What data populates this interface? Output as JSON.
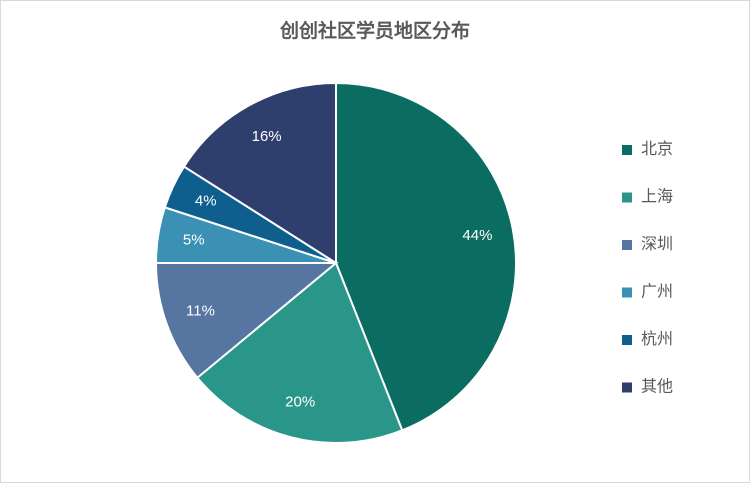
{
  "chart_data": {
    "type": "pie",
    "title": "创创社区学员地区分布",
    "categories": [
      "北京",
      "上海",
      "深圳",
      "广州",
      "杭州",
      "其他"
    ],
    "values": [
      44,
      20,
      11,
      5,
      4,
      16
    ],
    "value_labels": [
      "44%",
      "20%",
      "11%",
      "5%",
      "4%",
      "16%"
    ],
    "colors": [
      "#0b6d62",
      "#2a968a",
      "#5675a0",
      "#3a91b4",
      "#0e5f8e",
      "#2f3f6d"
    ],
    "legend": "right"
  }
}
